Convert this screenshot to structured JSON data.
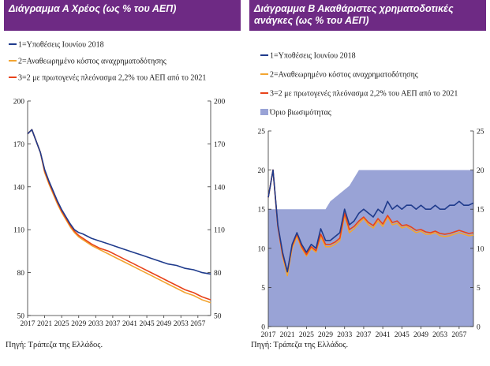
{
  "colors": {
    "banner": "#6e2a84",
    "series1": "#1f3b8c",
    "series2": "#f3a531",
    "series3": "#e8431a",
    "band": "#99a3d6"
  },
  "chart_data": [
    {
      "type": "line",
      "title": "Διάγραμμα Α Χρέος (ως % του ΑΕΠ)",
      "source": "Πηγή: Τράπεζα της Ελλάδος.",
      "legend_position": "top-left",
      "grid": false,
      "ylim": [
        50,
        200
      ],
      "yticks": [
        50,
        80,
        110,
        140,
        170,
        200
      ],
      "xlim": [
        2017,
        2060
      ],
      "xticks": [
        "2017",
        "2021",
        "2025",
        "2029",
        "2033",
        "2037",
        "2041",
        "2045",
        "2049",
        "2053",
        "2057"
      ],
      "secondary_y": true,
      "series": [
        {
          "name": "1=Υποθέσεις Ιουνίου 2018",
          "x": [
            2017,
            2018,
            2019,
            2020,
            2021,
            2022,
            2023,
            2024,
            2025,
            2026,
            2027,
            2028,
            2029,
            2030,
            2032,
            2034,
            2036,
            2038,
            2040,
            2042,
            2044,
            2046,
            2048,
            2050,
            2052,
            2054,
            2056,
            2058,
            2060
          ],
          "y": [
            177,
            180,
            172,
            164,
            152,
            144,
            137,
            130,
            124,
            119,
            114,
            110,
            108,
            107,
            104,
            102,
            100,
            98,
            96,
            94,
            92,
            90,
            88,
            86,
            85,
            83,
            82,
            80,
            79
          ]
        },
        {
          "name": "2=Αναθεωρημένο κόστος αναχρηματοδότησης",
          "x": [
            2017,
            2018,
            2019,
            2020,
            2021,
            2022,
            2023,
            2024,
            2025,
            2026,
            2027,
            2028,
            2029,
            2030,
            2032,
            2034,
            2036,
            2038,
            2040,
            2042,
            2044,
            2046,
            2048,
            2050,
            2052,
            2054,
            2056,
            2058,
            2060
          ],
          "y": [
            177,
            180,
            172,
            164,
            150,
            142,
            135,
            128,
            122,
            117,
            112,
            108,
            105,
            103,
            99,
            96,
            93,
            90,
            87,
            84,
            81,
            78,
            75,
            72,
            69,
            66,
            64,
            61,
            59
          ]
        },
        {
          "name": "3=2 με πρωτογενές πλεόνασμα 2,2% του ΑΕΠ από το 2021",
          "x": [
            2017,
            2018,
            2019,
            2020,
            2021,
            2022,
            2023,
            2024,
            2025,
            2026,
            2027,
            2028,
            2029,
            2030,
            2032,
            2034,
            2036,
            2038,
            2040,
            2042,
            2044,
            2046,
            2048,
            2050,
            2052,
            2054,
            2056,
            2058,
            2060
          ],
          "y": [
            177,
            180,
            172,
            164,
            151,
            143,
            136,
            129,
            123,
            118,
            113,
            109,
            106,
            104,
            100,
            97,
            95,
            92,
            89,
            86,
            83,
            80,
            77,
            74,
            71,
            68,
            66,
            63,
            61
          ]
        }
      ]
    },
    {
      "type": "line",
      "title": "Διάγραμμα Β Ακαθάριστες χρηματοδοτικές ανάγκες (ως % του ΑΕΠ)",
      "source": "Πηγή: Τράπεζα της Ελλάδος.",
      "legend_position": "top-left",
      "grid": false,
      "ylim": [
        0,
        25
      ],
      "yticks": [
        0,
        5,
        10,
        15,
        20,
        25
      ],
      "xlim": [
        2017,
        2060
      ],
      "xticks": [
        "2017",
        "2021",
        "2025",
        "2029",
        "2033",
        "2037",
        "2041",
        "2045",
        "2049",
        "2053",
        "2057"
      ],
      "secondary_y": true,
      "band": {
        "name": "Όριο βιωσιμότητας",
        "x": [
          2017,
          2029,
          2030,
          2032,
          2034,
          2036,
          2060
        ],
        "y": [
          15,
          15,
          16,
          17,
          18,
          20,
          20
        ]
      },
      "series": [
        {
          "name": "1=Υποθέσεις Ιουνίου 2018",
          "x": [
            2017,
            2018,
            2019,
            2020,
            2021,
            2022,
            2023,
            2024,
            2025,
            2026,
            2027,
            2028,
            2029,
            2030,
            2031,
            2032,
            2033,
            2034,
            2035,
            2036,
            2037,
            2038,
            2039,
            2040,
            2041,
            2042,
            2043,
            2044,
            2045,
            2046,
            2047,
            2048,
            2049,
            2050,
            2051,
            2052,
            2053,
            2054,
            2055,
            2056,
            2057,
            2058,
            2059,
            2060
          ],
          "y": [
            16.5,
            20,
            13,
            9.5,
            7,
            10.5,
            12,
            10.5,
            9.5,
            10.5,
            10,
            12.5,
            11,
            11,
            11.5,
            12,
            15,
            13,
            13.5,
            14.5,
            15,
            14.5,
            14,
            15,
            14.5,
            16,
            15,
            15.5,
            15,
            15.5,
            15.5,
            15,
            15.5,
            15,
            15,
            15.5,
            15,
            15,
            15.5,
            15.5,
            16,
            15.5,
            15.5,
            15.8
          ]
        },
        {
          "name": "2=Αναθεωρημένο κόστος αναχρηματοδότησης",
          "x": [
            2017,
            2018,
            2019,
            2020,
            2021,
            2022,
            2023,
            2024,
            2025,
            2026,
            2027,
            2028,
            2029,
            2030,
            2031,
            2032,
            2033,
            2034,
            2035,
            2036,
            2037,
            2038,
            2039,
            2040,
            2041,
            2042,
            2043,
            2044,
            2045,
            2046,
            2047,
            2048,
            2049,
            2050,
            2051,
            2052,
            2053,
            2054,
            2055,
            2056,
            2057,
            2058,
            2059,
            2060
          ],
          "y": [
            16.5,
            20,
            12.8,
            9,
            6.5,
            10,
            11.5,
            10,
            9,
            10,
            9.5,
            11.5,
            10.2,
            10.2,
            10.5,
            11,
            14.2,
            12,
            12.5,
            13.2,
            13.8,
            13,
            12.6,
            13.5,
            12.8,
            14,
            13,
            13.2,
            12.6,
            12.8,
            12.4,
            12,
            12.2,
            11.8,
            11.8,
            12,
            11.6,
            11.5,
            11.6,
            11.8,
            12,
            11.8,
            11.6,
            11.7
          ]
        },
        {
          "name": "3=2 με πρωτογενές πλεόνασμα 2,2% του ΑΕΠ από το 2021",
          "x": [
            2017,
            2018,
            2019,
            2020,
            2021,
            2022,
            2023,
            2024,
            2025,
            2026,
            2027,
            2028,
            2029,
            2030,
            2031,
            2032,
            2033,
            2034,
            2035,
            2036,
            2037,
            2038,
            2039,
            2040,
            2041,
            2042,
            2043,
            2044,
            2045,
            2046,
            2047,
            2048,
            2049,
            2050,
            2051,
            2052,
            2053,
            2054,
            2055,
            2056,
            2057,
            2058,
            2059,
            2060
          ],
          "y": [
            16.5,
            20,
            12.8,
            9.2,
            7,
            10.3,
            11.8,
            10.2,
            9.2,
            10.2,
            9.7,
            11.8,
            10.5,
            10.5,
            10.8,
            11.3,
            14.5,
            12.4,
            12.8,
            13.5,
            14,
            13.3,
            12.9,
            13.8,
            13.1,
            14.2,
            13.3,
            13.5,
            12.9,
            13,
            12.7,
            12.3,
            12.4,
            12.1,
            12,
            12.2,
            11.9,
            11.8,
            11.9,
            12.1,
            12.3,
            12.1,
            11.9,
            12
          ]
        }
      ]
    }
  ]
}
